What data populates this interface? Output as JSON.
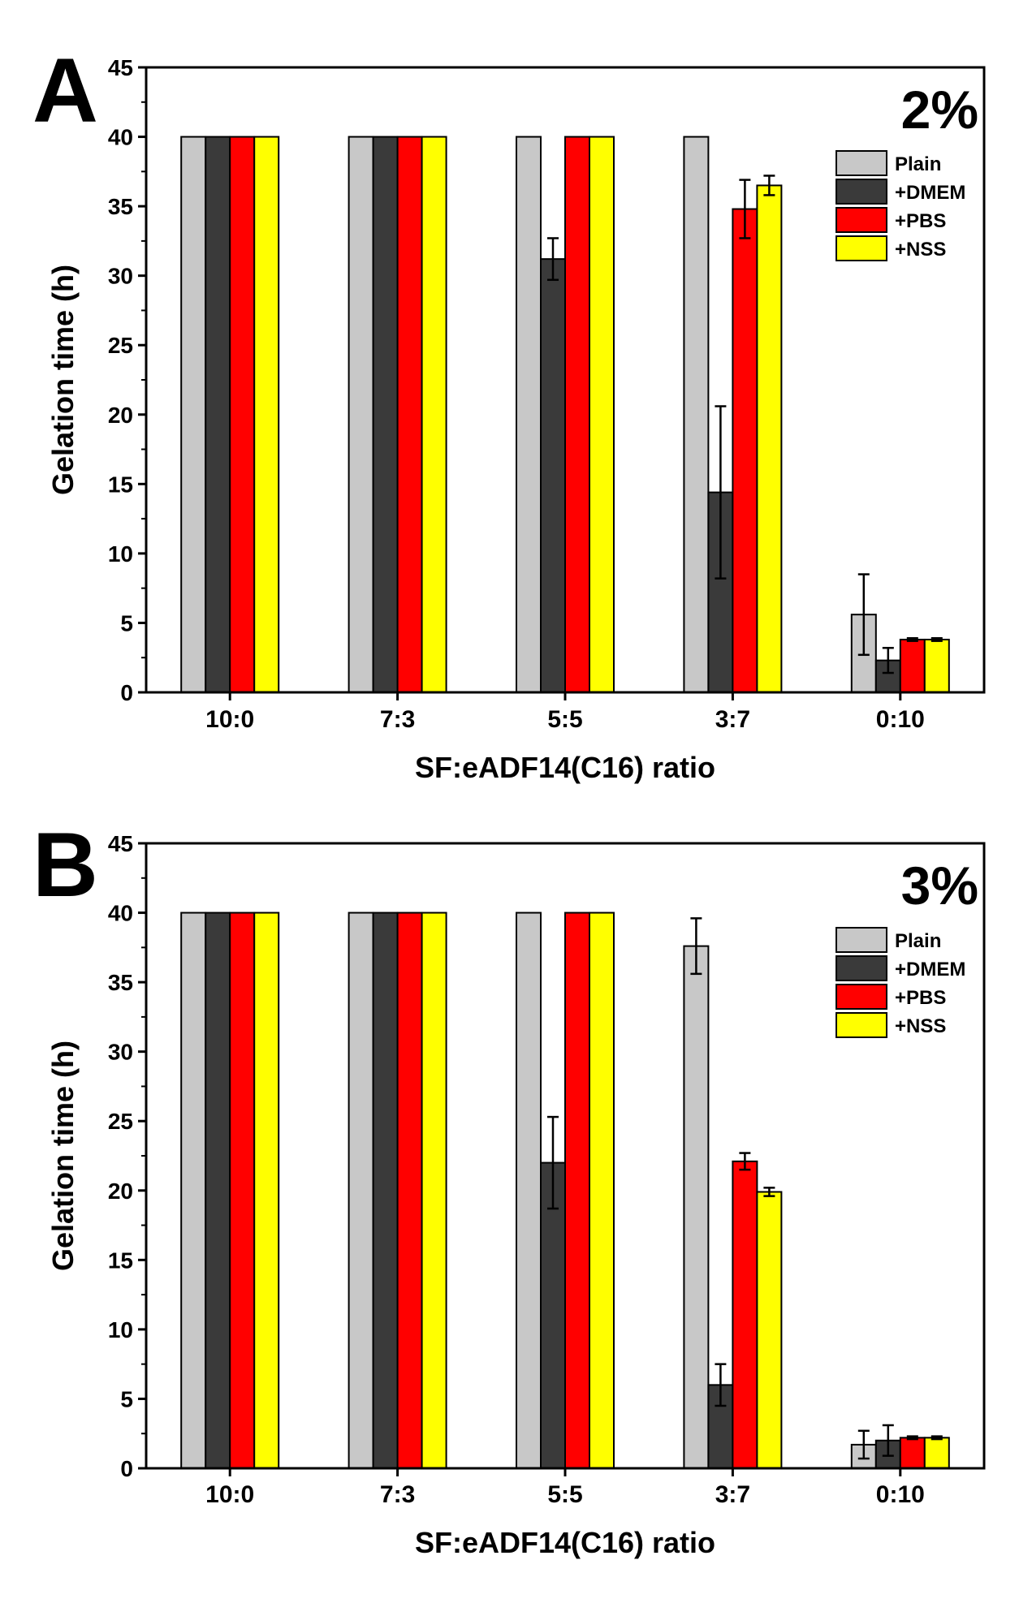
{
  "colors": {
    "plain": "#c8c8c8",
    "dmem": "#3a3a3a",
    "pbs": "#ff0000",
    "nss": "#ffff00",
    "stroke": "#000000"
  },
  "chart_data": [
    {
      "type": "bar",
      "panel_label": "A",
      "title": "2%",
      "xlabel": "SF:eADF14(C16) ratio",
      "ylabel": "Gelation time (h)",
      "ylim": [
        0,
        45
      ],
      "yticks": [
        0,
        5,
        10,
        15,
        20,
        25,
        30,
        35,
        40,
        45
      ],
      "categories": [
        "10:0",
        "7:3",
        "5:5",
        "3:7",
        "0:10"
      ],
      "legend_position": "top-right",
      "series": [
        {
          "name": "Plain",
          "color_key": "plain",
          "values": [
            40,
            40,
            40,
            40,
            5.6
          ],
          "errors": [
            0,
            0,
            0,
            0,
            2.9
          ]
        },
        {
          "name": "+DMEM",
          "color_key": "dmem",
          "values": [
            40,
            40,
            31.2,
            14.4,
            2.3
          ],
          "errors": [
            0,
            0,
            1.5,
            6.2,
            0.9
          ]
        },
        {
          "name": "+PBS",
          "color_key": "pbs",
          "values": [
            40,
            40,
            40,
            34.8,
            3.8
          ],
          "errors": [
            0,
            0,
            0,
            2.1,
            0.1
          ]
        },
        {
          "name": "+NSS",
          "color_key": "nss",
          "values": [
            40,
            40,
            40,
            36.5,
            3.8
          ],
          "errors": [
            0,
            0,
            0,
            0.7,
            0.1
          ]
        }
      ]
    },
    {
      "type": "bar",
      "panel_label": "B",
      "title": "3%",
      "xlabel": "SF:eADF14(C16) ratio",
      "ylabel": "Gelation time (h)",
      "ylim": [
        0,
        45
      ],
      "yticks": [
        0,
        5,
        10,
        15,
        20,
        25,
        30,
        35,
        40,
        45
      ],
      "categories": [
        "10:0",
        "7:3",
        "5:5",
        "3:7",
        "0:10"
      ],
      "legend_position": "top-right",
      "series": [
        {
          "name": "Plain",
          "color_key": "plain",
          "values": [
            40,
            40,
            40,
            37.6,
            1.7
          ],
          "errors": [
            0,
            0,
            0,
            2.0,
            1.0
          ]
        },
        {
          "name": "+DMEM",
          "color_key": "dmem",
          "values": [
            40,
            40,
            22.0,
            6.0,
            2.0
          ],
          "errors": [
            0,
            0,
            3.3,
            1.5,
            1.1
          ]
        },
        {
          "name": "+PBS",
          "color_key": "pbs",
          "values": [
            40,
            40,
            40,
            22.1,
            2.2
          ],
          "errors": [
            0,
            0,
            0,
            0.6,
            0.1
          ]
        },
        {
          "name": "+NSS",
          "color_key": "nss",
          "values": [
            40,
            40,
            40,
            19.9,
            2.2
          ],
          "errors": [
            0,
            0,
            0,
            0.3,
            0.1
          ]
        }
      ]
    }
  ]
}
